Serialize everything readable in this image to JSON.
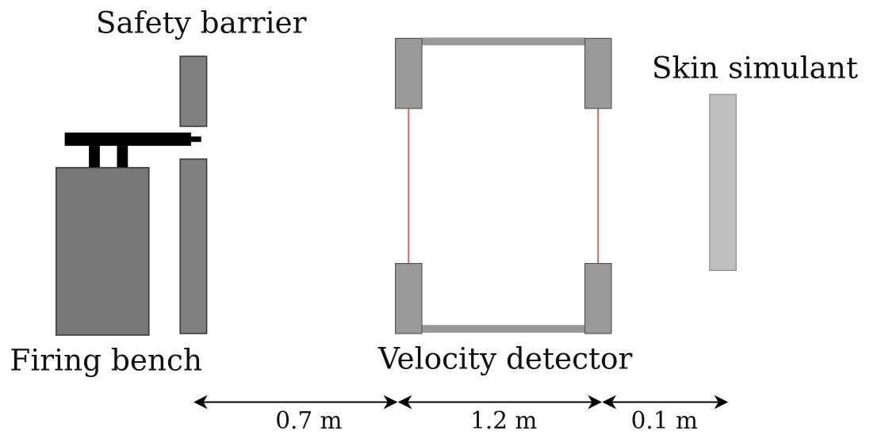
{
  "labels": {
    "safety_barrier": "Safety barrier",
    "firing_bench": "Firing bench",
    "velocity_detector": "Velocity detector",
    "skin_simulant": "Skin simulant"
  },
  "distances": [
    "0.7 m",
    "1.2 m",
    "0.1 m"
  ]
}
